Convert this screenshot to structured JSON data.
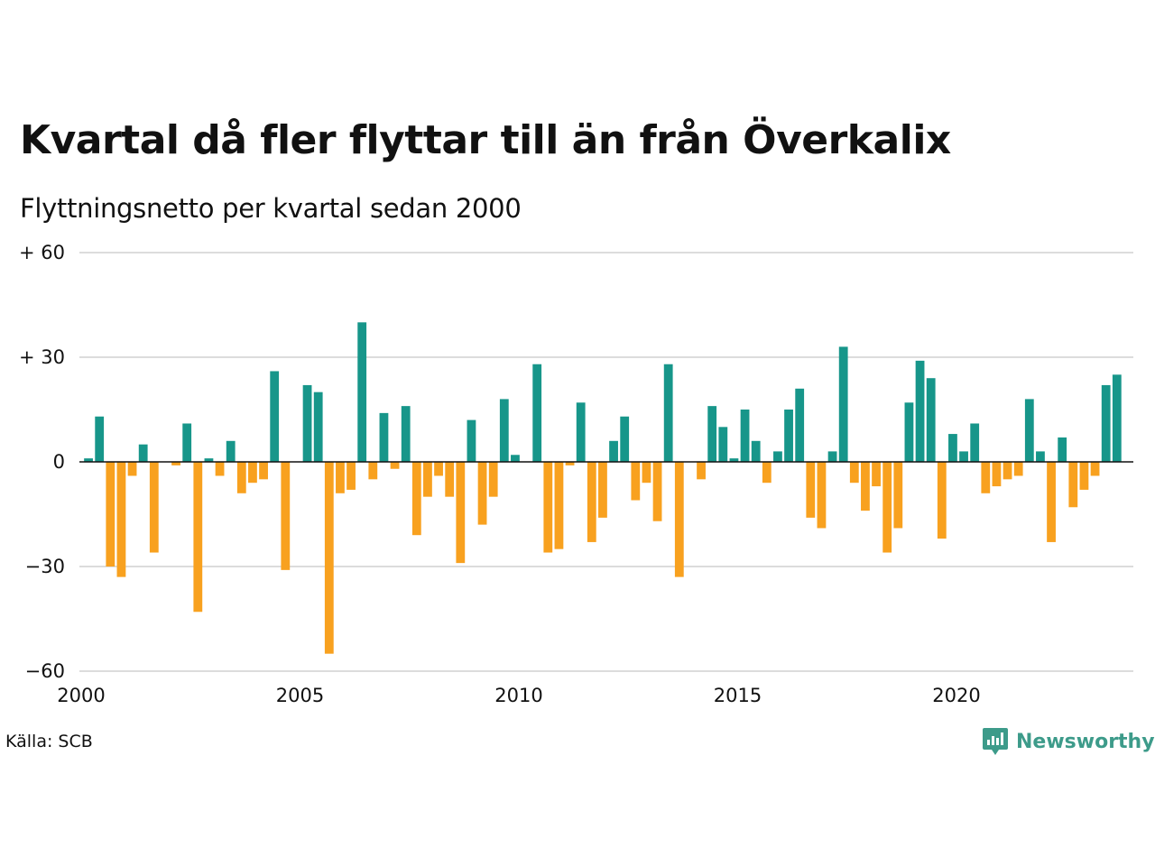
{
  "title": "Kvartal då fler flyttar till än från Överkalix",
  "subtitle": "Flyttningsnetto per kvartal sedan 2000",
  "source": "Källa: SCB",
  "brand": {
    "name": "Newsworthy",
    "icon": "bar-chart-speech-bubble-icon",
    "color": "#3d9b8a"
  },
  "colors": {
    "positive": "#17968a",
    "negative": "#f8a11f",
    "grid": "#dcdcdc",
    "baseline": "#111111"
  },
  "chart_data": {
    "type": "bar",
    "title": "Kvartal då fler flyttar till än från Överkalix",
    "subtitle": "Flyttningsnetto per kvartal sedan 2000",
    "xlabel": "",
    "ylabel": "",
    "x_ticks": [
      {
        "year": 2000,
        "label": "2000"
      },
      {
        "year": 2005,
        "label": "2005"
      },
      {
        "year": 2010,
        "label": "2010"
      },
      {
        "year": 2015,
        "label": "2015"
      },
      {
        "year": 2020,
        "label": "2020"
      }
    ],
    "y_ticks": [
      {
        "value": 60,
        "label": "+ 60"
      },
      {
        "value": 30,
        "label": "+ 30"
      },
      {
        "value": 0,
        "label": "0"
      },
      {
        "value": -30,
        "label": "−30"
      },
      {
        "value": -60,
        "label": "−60"
      }
    ],
    "xlim": [
      2000,
      2024
    ],
    "ylim": [
      -60,
      60
    ],
    "grid": true,
    "legend": "none",
    "series": [
      {
        "categories": [
          "2000K1",
          "2000K2",
          "2000K3",
          "2000K4",
          "2001K1",
          "2001K2",
          "2001K3",
          "2001K4",
          "2002K1",
          "2002K2",
          "2002K3",
          "2002K4",
          "2003K1",
          "2003K2",
          "2003K3",
          "2003K4",
          "2004K1",
          "2004K2",
          "2004K3",
          "2004K4",
          "2005K1",
          "2005K2",
          "2005K3",
          "2005K4",
          "2006K1",
          "2006K2",
          "2006K3",
          "2006K4",
          "2007K1",
          "2007K2",
          "2007K3",
          "2007K4",
          "2008K1",
          "2008K2",
          "2008K3",
          "2008K4",
          "2009K1",
          "2009K2",
          "2009K3",
          "2009K4",
          "2010K1",
          "2010K2",
          "2010K3",
          "2010K4",
          "2011K1",
          "2011K2",
          "2011K3",
          "2011K4",
          "2012K1",
          "2012K2",
          "2012K3",
          "2012K4",
          "2013K1",
          "2013K2",
          "2013K3",
          "2013K4",
          "2014K1",
          "2014K2",
          "2014K3",
          "2014K4",
          "2015K1",
          "2015K2",
          "2015K3",
          "2015K4",
          "2016K1",
          "2016K2",
          "2016K3",
          "2016K4",
          "2017K1",
          "2017K2",
          "2017K3",
          "2017K4",
          "2018K1",
          "2018K2",
          "2018K3",
          "2018K4",
          "2019K1",
          "2019K2",
          "2019K3",
          "2019K4",
          "2020K1",
          "2020K2",
          "2020K3",
          "2020K4",
          "2021K1",
          "2021K2",
          "2021K3",
          "2021K4",
          "2022K1",
          "2022K2",
          "2022K3",
          "2022K4",
          "2023K1",
          "2023K2",
          "2023K3",
          "2023K4"
        ],
        "values": [
          1,
          13,
          -30,
          -33,
          -4,
          5,
          -26,
          0,
          -1,
          11,
          -43,
          1,
          -4,
          6,
          -9,
          -6,
          -5,
          26,
          -31,
          0,
          22,
          20,
          -55,
          -9,
          -8,
          40,
          -5,
          14,
          -2,
          16,
          -21,
          -10,
          -4,
          -10,
          -29,
          12,
          -18,
          -10,
          18,
          2,
          0,
          28,
          -26,
          -25,
          -1,
          17,
          -23,
          -16,
          6,
          13,
          -11,
          -6,
          -17,
          28,
          -33,
          0,
          -5,
          16,
          10,
          1,
          15,
          6,
          -6,
          3,
          15,
          21,
          -16,
          -19,
          3,
          33,
          -6,
          -14,
          -7,
          -26,
          -19,
          17,
          29,
          24,
          -22,
          8,
          3,
          11,
          -9,
          -7,
          -5,
          -4,
          18,
          3,
          -23,
          7,
          -13,
          -8,
          -4,
          22,
          25,
          0
        ]
      }
    ]
  }
}
